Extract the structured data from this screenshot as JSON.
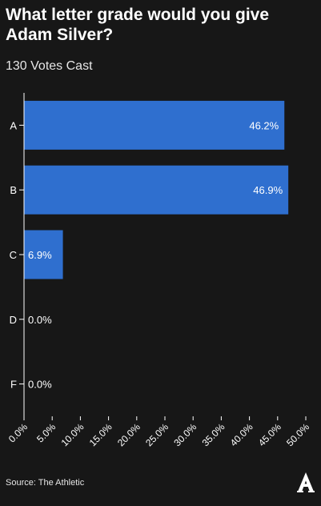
{
  "chart_data": {
    "type": "bar",
    "orientation": "horizontal",
    "title": "What letter grade would you give Adam Silver?",
    "subtitle": "130 Votes Cast",
    "categories": [
      "A",
      "B",
      "C",
      "D",
      "F"
    ],
    "values": [
      46.2,
      46.9,
      6.9,
      0.0,
      0.0
    ],
    "value_labels": [
      "46.2%",
      "46.9%",
      "6.9%",
      "0.0%",
      "0.0%"
    ],
    "xlim": [
      0,
      50
    ],
    "xticks": [
      "0.0%",
      "5.0%",
      "10.0%",
      "15.0%",
      "20.0%",
      "25.0%",
      "30.0%",
      "35.0%",
      "40.0%",
      "45.0%",
      "50.0%"
    ],
    "bar_color": "#2f6fcf",
    "background": "#171717",
    "grid": false
  },
  "footer": {
    "source": "Source: The Athletic",
    "logo_icon": "athletic-logo-icon"
  }
}
